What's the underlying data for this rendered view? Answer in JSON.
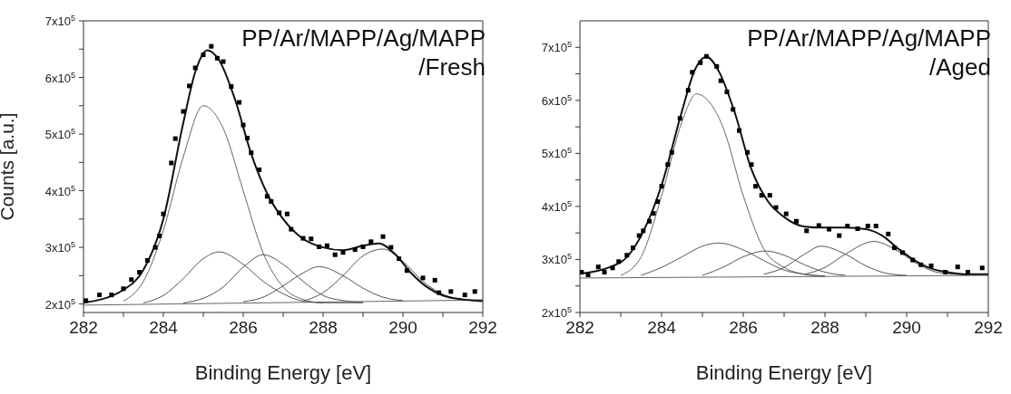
{
  "chart_data": [
    {
      "type": "scatter",
      "title": "PP/Ar/MAPP/Ag/MAPP /Fresh",
      "xlabel": "Binding Energy [eV]",
      "ylabel": "Counts [a.u.]",
      "xlim": [
        282,
        292
      ],
      "xticks": [
        282,
        {
          "value": 283,
          "label": null
        },
        284,
        {
          "value": 285,
          "label": null
        },
        286,
        {
          "value": 287,
          "label": null
        },
        288,
        {
          "value": 289,
          "label": null
        },
        290,
        {
          "value": 291,
          "label": null
        },
        292
      ],
      "ylim": [
        185000,
        700000
      ],
      "yticks": [
        {
          "value": 200000,
          "label": "2x10$^{5}$"
        },
        {
          "value": 250000,
          "label": null
        },
        {
          "value": 300000,
          "label": "3x10$^{5}$"
        },
        {
          "value": 350000,
          "label": null
        },
        {
          "value": 400000,
          "label": "4x10$^{5}$"
        },
        {
          "value": 450000,
          "label": null
        },
        {
          "value": 500000,
          "label": "5x10$^{5}$"
        },
        {
          "value": 550000,
          "label": null
        },
        {
          "value": 600000,
          "label": "6x10$^{5}$"
        },
        {
          "value": 650000,
          "label": null
        },
        {
          "value": 700000,
          "label": "7x10$^{5}$"
        }
      ],
      "series": [
        {
          "type": "line",
          "color": "#666666",
          "marker": "none",
          "x": [
            282,
            292
          ],
          "values": [
            198000,
            207000
          ]
        },
        {
          "type": "line",
          "color": "#666666",
          "marker": "none",
          "x": [
            283,
            283.5,
            284,
            284.5,
            285,
            285.5,
            286,
            286.5,
            287,
            287.5,
            288,
            289
          ],
          "values": [
            205000,
            240000,
            330000,
            460000,
            550000,
            510000,
            400000,
            290000,
            230000,
            208000,
            202000,
            202000
          ]
        },
        {
          "type": "line",
          "color": "#555555",
          "marker": "none",
          "x": [
            283.5,
            284,
            284.5,
            285,
            285.4,
            286,
            286.5,
            287,
            287.5,
            288
          ],
          "values": [
            202000,
            215000,
            245000,
            280000,
            292000,
            270000,
            240000,
            218000,
            205000,
            202000
          ]
        },
        {
          "type": "line",
          "color": "#555555",
          "marker": "none",
          "x": [
            284.5,
            285,
            285.5,
            286,
            286.5,
            287,
            287.5,
            288,
            288.5,
            289
          ],
          "values": [
            202000,
            210000,
            230000,
            265000,
            287000,
            270000,
            240000,
            215000,
            206000,
            203000
          ]
        },
        {
          "type": "line",
          "color": "#555555",
          "marker": "none",
          "x": [
            286,
            286.5,
            287,
            287.5,
            287.9,
            288.5,
            289,
            289.5,
            290
          ],
          "values": [
            204000,
            212000,
            232000,
            255000,
            266000,
            250000,
            228000,
            212000,
            206000
          ]
        },
        {
          "type": "line",
          "color": "#555555",
          "marker": "none",
          "x": [
            287.5,
            288,
            288.5,
            289,
            289.5,
            290,
            290.5,
            291,
            291.5,
            292
          ],
          "values": [
            205000,
            220000,
            250000,
            285000,
            297000,
            275000,
            240000,
            217000,
            208000,
            207000
          ]
        },
        {
          "type": "line",
          "color": "#111111",
          "marker": "none",
          "x": [
            282,
            283,
            283.5,
            284,
            284.5,
            284.8,
            285.1,
            285.4,
            285.8,
            286.2,
            286.6,
            287,
            287.5,
            288,
            288.5,
            289,
            289.4,
            289.8,
            290.2,
            290.6,
            291,
            291.5,
            292
          ],
          "values": [
            202000,
            225000,
            260000,
            350000,
            520000,
            610000,
            648000,
            630000,
            560000,
            465000,
            395000,
            350000,
            315000,
            300000,
            295000,
            303000,
            307000,
            288000,
            255000,
            230000,
            215000,
            208000,
            205000
          ]
        },
        {
          "color": "#000000",
          "marker": "square",
          "x": [
            282.06,
            282.4,
            282.7,
            283,
            283.2,
            283.4,
            283.6,
            283.8,
            283.9,
            284,
            284.2,
            284.3,
            284.5,
            284.65,
            284.8,
            285,
            285.2,
            285.35,
            285.5,
            285.7,
            285.9,
            286,
            286.1,
            286.2,
            286.4,
            286.6,
            286.7,
            286.9,
            287.1,
            287.2,
            287.5,
            287.7,
            287.9,
            288.1,
            288.3,
            288.5,
            288.8,
            289,
            289.2,
            289.5,
            289.7,
            289.9,
            290.1,
            290.5,
            290.8,
            290.9,
            291.2,
            291.55,
            291.8
          ],
          "values": [
            206000,
            216000,
            216000,
            227000,
            243000,
            256000,
            277000,
            300000,
            320000,
            359000,
            449000,
            492000,
            540000,
            585000,
            617000,
            640000,
            655000,
            634000,
            628000,
            584000,
            556000,
            516000,
            493000,
            467000,
            437000,
            390000,
            381000,
            361000,
            359000,
            332000,
            316000,
            315000,
            301000,
            303000,
            287000,
            291000,
            296000,
            301000,
            310000,
            319000,
            300000,
            280000,
            259000,
            246000,
            242000,
            220000,
            222000,
            216000,
            222000
          ]
        }
      ]
    },
    {
      "type": "scatter",
      "title": "PP/Ar/MAPP/Ag/MAPP /Aged",
      "xlabel": "Binding Energy [eV]",
      "xlim": [
        282,
        292
      ],
      "xticks": [
        282,
        {
          "value": 283,
          "label": null
        },
        284,
        {
          "value": 285,
          "label": null
        },
        286,
        {
          "value": 287,
          "label": null
        },
        288,
        {
          "value": 289,
          "label": null
        },
        290,
        {
          "value": 291,
          "label": null
        },
        292
      ],
      "ylim": [
        200000,
        750000
      ],
      "yticks": [
        {
          "value": 200000,
          "label": "2x10$^{5}$"
        },
        {
          "value": 250000,
          "label": null
        },
        {
          "value": 300000,
          "label": "3x10$^{5}$"
        },
        {
          "value": 350000,
          "label": null
        },
        {
          "value": 400000,
          "label": "4x10$^{5}$"
        },
        {
          "value": 450000,
          "label": null
        },
        {
          "value": 500000,
          "label": "5x10$^{5}$"
        },
        {
          "value": 550000,
          "label": null
        },
        {
          "value": 600000,
          "label": "6x10$^{5}$"
        },
        {
          "value": 650000,
          "label": null
        },
        {
          "value": 700000,
          "label": "7x10$^{5}$"
        }
      ],
      "series": [
        {
          "type": "line",
          "color": "#666666",
          "marker": "none",
          "x": [
            282,
            292
          ],
          "values": [
            265000,
            270000
          ]
        },
        {
          "type": "line",
          "color": "#666666",
          "marker": "none",
          "x": [
            283,
            283.5,
            284,
            284.5,
            284.85,
            285.5,
            286,
            286.5,
            287,
            287.5,
            288
          ],
          "values": [
            270000,
            305000,
            420000,
            560000,
            612000,
            550000,
            420000,
            320000,
            285000,
            272000,
            268000
          ]
        },
        {
          "type": "line",
          "color": "#555555",
          "marker": "none",
          "x": [
            283.5,
            284,
            284.5,
            285,
            285.4,
            286,
            286.5,
            287,
            287.5,
            288
          ],
          "values": [
            270000,
            285000,
            305000,
            325000,
            331000,
            318000,
            298000,
            280000,
            272000,
            269000
          ]
        },
        {
          "type": "line",
          "color": "#555555",
          "marker": "none",
          "x": [
            285,
            285.5,
            286,
            286.55,
            287,
            287.5,
            288,
            288.5
          ],
          "values": [
            270000,
            285000,
            305000,
            316000,
            308000,
            290000,
            276000,
            270000
          ]
        },
        {
          "type": "line",
          "color": "#555555",
          "marker": "none",
          "x": [
            286.5,
            287,
            287.5,
            287.9,
            288.5,
            289,
            289.5,
            290
          ],
          "values": [
            272000,
            285000,
            310000,
            325000,
            310000,
            288000,
            274000,
            270000
          ]
        },
        {
          "type": "line",
          "color": "#555555",
          "marker": "none",
          "x": [
            287.5,
            288,
            288.5,
            289.2,
            289.8,
            290.3,
            290.8,
            291.5
          ],
          "values": [
            272000,
            285000,
            310000,
            334000,
            315000,
            290000,
            275000,
            271000
          ]
        },
        {
          "type": "line",
          "color": "#111111",
          "marker": "none",
          "x": [
            282,
            283,
            283.5,
            284,
            284.5,
            284.8,
            285.1,
            285.4,
            285.8,
            286.2,
            286.6,
            287,
            287.5,
            288,
            288.5,
            289,
            289.4,
            289.8,
            290.2,
            290.6,
            291,
            291.5,
            292
          ],
          "values": [
            273000,
            295000,
            345000,
            440000,
            580000,
            655000,
            682000,
            655000,
            575000,
            470000,
            410000,
            380000,
            362000,
            360000,
            360000,
            357000,
            345000,
            320000,
            298000,
            283000,
            276000,
            272000,
            272000
          ]
        },
        {
          "color": "#000000",
          "marker": "square",
          "x": [
            282.04,
            282.2,
            282.45,
            282.6,
            282.8,
            282.95,
            283.15,
            283.3,
            283.45,
            283.55,
            283.7,
            283.8,
            283.9,
            284,
            284.15,
            284.25,
            284.45,
            284.65,
            284.75,
            284.95,
            285.1,
            285.35,
            285.45,
            285.6,
            285.75,
            285.9,
            286.1,
            286.2,
            286.3,
            286.45,
            286.65,
            286.8,
            287.05,
            287.3,
            287.55,
            287.85,
            288.1,
            288.35,
            288.55,
            288.8,
            289.05,
            289.25,
            289.55,
            289.7,
            289.9,
            290.15,
            290.35,
            290.6,
            290.95,
            291.25,
            291.5,
            291.85
          ],
          "values": [
            276000,
            271000,
            286000,
            276000,
            284000,
            296000,
            308000,
            322000,
            345000,
            354000,
            372000,
            387000,
            409000,
            438000,
            479000,
            502000,
            566000,
            619000,
            653000,
            671000,
            683000,
            664000,
            637000,
            616000,
            583000,
            543000,
            502000,
            479000,
            438000,
            421000,
            421000,
            398000,
            386000,
            372000,
            354000,
            364000,
            357000,
            345000,
            363000,
            358000,
            363000,
            363000,
            348000,
            322000,
            313000,
            299000,
            290000,
            288000,
            276000,
            286000,
            276000,
            284000
          ]
        }
      ]
    }
  ]
}
